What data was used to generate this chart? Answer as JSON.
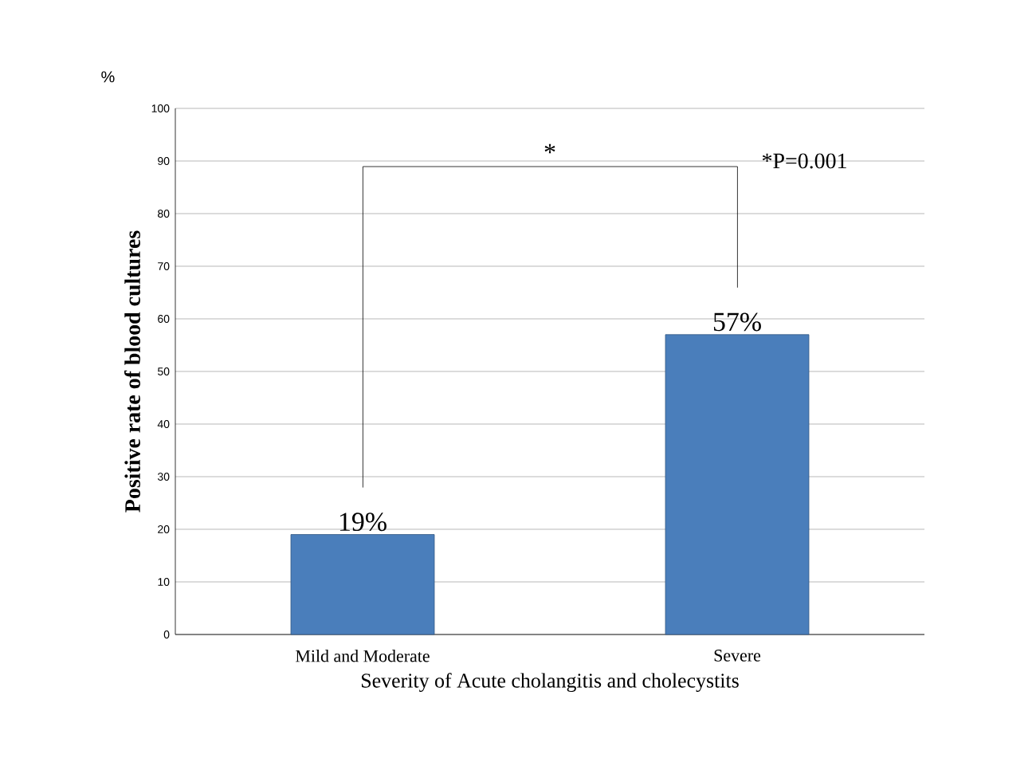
{
  "chart_data": {
    "type": "bar",
    "xlabel": "Severity of Acute cholangitis and cholecystits",
    "ylabel": "Positive rate of blood cultures",
    "categories": [
      "Mild and Moderate",
      "Severe"
    ],
    "values": [
      19,
      57
    ],
    "value_labels": [
      "19%",
      "57%"
    ],
    "color": "#4a7ebb",
    "ylim": [
      0,
      100
    ],
    "yticks": [
      0,
      10,
      20,
      30,
      40,
      50,
      60,
      70,
      80,
      90,
      100
    ],
    "grid": "y",
    "annotations": [
      "%",
      "*",
      "*P=0.001"
    ]
  }
}
